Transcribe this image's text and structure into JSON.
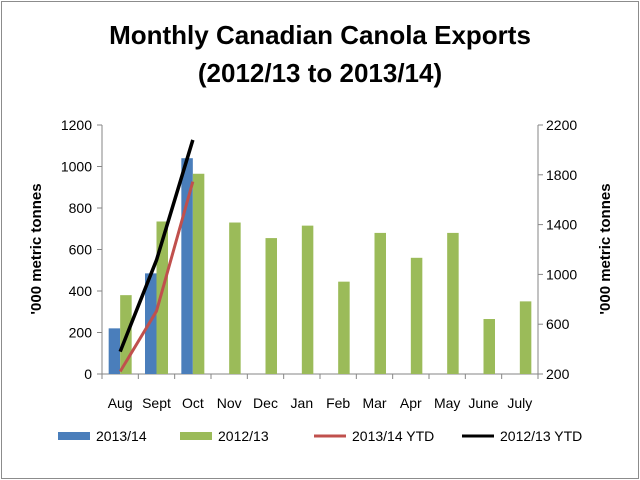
{
  "chart_data": {
    "type": "bar",
    "title_line1": "Monthly Canadian  Canola Exports",
    "title_line2": "(2012/13 to 2013/14)",
    "categories": [
      "Aug",
      "Sept",
      "Oct",
      "Nov",
      "Dec",
      "Jan",
      "Feb",
      "Mar",
      "Apr",
      "May",
      "June",
      "July"
    ],
    "ylabel_left": "'000 metric tonnes",
    "ylabel_right": "'000 metric tonnes",
    "left_axis": {
      "min": 0,
      "max": 1200,
      "ticks": [
        "0",
        "200",
        "400",
        "600",
        "800",
        "1000",
        "1200"
      ]
    },
    "right_axis": {
      "min": 200,
      "max": 2200,
      "ticks": [
        "200",
        "600",
        "1000",
        "1400",
        "1800",
        "2200"
      ]
    },
    "series": [
      {
        "name": "2013/14",
        "type": "bar",
        "axis": "left",
        "color": "#4a7ebb",
        "values": [
          220,
          485,
          1040,
          null,
          null,
          null,
          null,
          null,
          null,
          null,
          null,
          null
        ]
      },
      {
        "name": "2012/13",
        "type": "bar",
        "axis": "left",
        "color": "#9bbb59",
        "values": [
          380,
          735,
          965,
          730,
          655,
          715,
          445,
          680,
          560,
          680,
          265,
          350
        ]
      },
      {
        "name": "2013/14 YTD",
        "type": "line",
        "axis": "right",
        "color": "#c0504d",
        "values": [
          220,
          705,
          1745,
          null,
          null,
          null,
          null,
          null,
          null,
          null,
          null,
          null
        ]
      },
      {
        "name": "2012/13 YTD",
        "type": "line",
        "axis": "right",
        "color": "#000000",
        "values": [
          380,
          1115,
          2080,
          null,
          null,
          null,
          null,
          null,
          null,
          null,
          null,
          null
        ]
      }
    ],
    "grid": false,
    "legend_position": "bottom"
  }
}
